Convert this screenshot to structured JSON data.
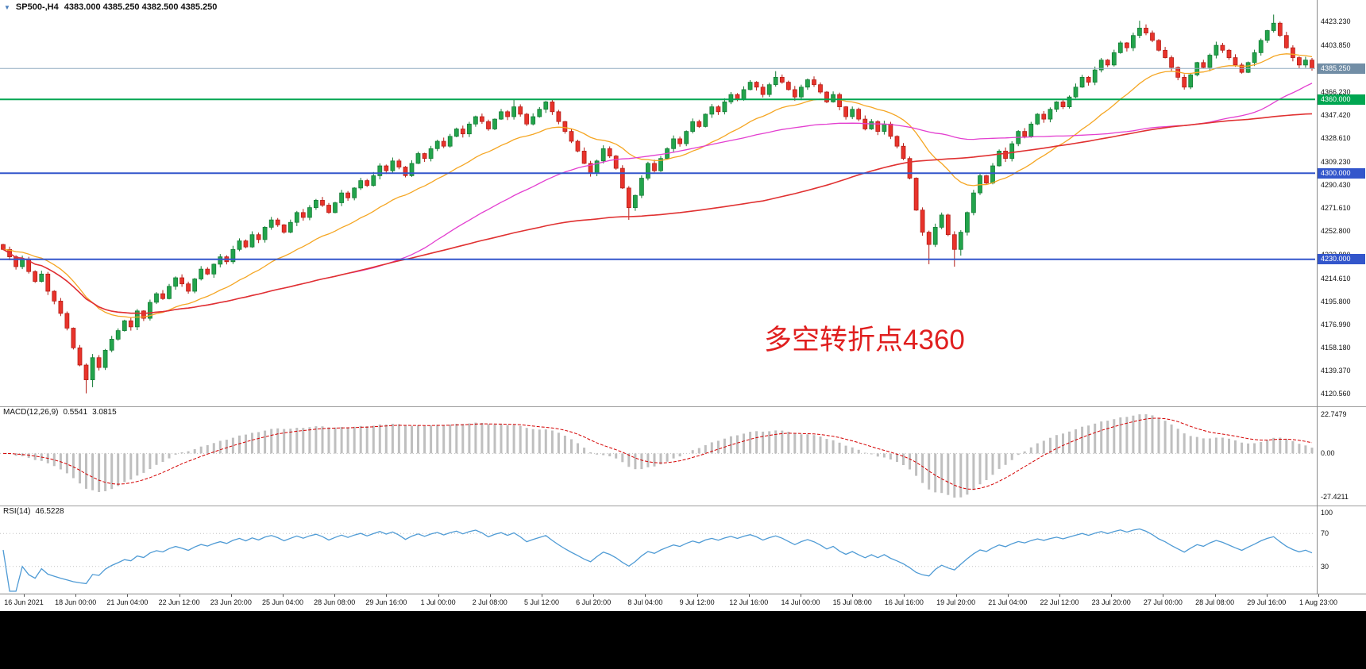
{
  "header": {
    "symbol_period": "SP500-,H4",
    "ohlc": "4383.000 4385.250 4382.500 4385.250"
  },
  "annotation": {
    "text": "多空转折点4360",
    "color": "#e01f1f"
  },
  "colors": {
    "up": "#23a44c",
    "up_border": "#137a33",
    "down": "#e8332b",
    "down_border": "#b31c15",
    "ma_fast": "#f5a623",
    "ma_mid": "#e33fd0",
    "ma_slow": "#e03131",
    "axis_text": "#111111"
  },
  "chart_data": {
    "type": "candlestick",
    "symbol": "SP500-",
    "timeframe": "H4",
    "ohlc_display": {
      "open": "4383.000",
      "high": "4385.250",
      "low": "4382.500",
      "close": "4385.250"
    },
    "price_axis": {
      "min": 4113,
      "max": 4437,
      "scale_labels": [
        "4423.230",
        "4403.850",
        "4366.230",
        "4347.420",
        "4328.610",
        "4309.230",
        "4290.430",
        "4271.610",
        "4252.800",
        "4233.990",
        "4214.610",
        "4195.800",
        "4176.990",
        "4158.180",
        "4139.370",
        "4120.560"
      ]
    },
    "levels": [
      {
        "value": 4385.25,
        "label": "4385.250",
        "line_color": "#93adc2",
        "box_color": "#728ea6",
        "width": 1,
        "name": "current-price"
      },
      {
        "value": 4360,
        "label": "4360.000",
        "line_color": "#00a651",
        "box_color": "#00a651",
        "width": 2,
        "name": "level-4360"
      },
      {
        "value": 4300,
        "label": "4300.000",
        "line_color": "#3356cb",
        "box_color": "#3356cb",
        "width": 2,
        "name": "level-4300"
      },
      {
        "value": 4230,
        "label": "4230.000",
        "line_color": "#3356cb",
        "box_color": "#3356cb",
        "width": 2,
        "name": "level-4230"
      }
    ],
    "moving_averages": [
      {
        "name": "fast",
        "method": "ema",
        "period": 21,
        "color": "#f5a623",
        "width": 1.3
      },
      {
        "name": "medium",
        "method": "sma",
        "period": 55,
        "color": "#e33fd0",
        "width": 1.3
      },
      {
        "name": "slow",
        "method": "sma",
        "period": 120,
        "color": "#e03131",
        "width": 1.6
      }
    ],
    "candles": {
      "first_open": 4242,
      "closes": [
        4238,
        4232,
        4224,
        4230,
        4220,
        4212,
        4218,
        4204,
        4196,
        4186,
        4174,
        4158,
        4144,
        4132,
        4150,
        4142,
        4156,
        4165,
        4172,
        4180,
        4175,
        4188,
        4182,
        4195,
        4202,
        4198,
        4208,
        4215,
        4210,
        4204,
        4214,
        4222,
        4218,
        4226,
        4232,
        4228,
        4238,
        4245,
        4240,
        4250,
        4246,
        4256,
        4262,
        4258,
        4252,
        4260,
        4268,
        4264,
        4272,
        4278,
        4274,
        4268,
        4276,
        4284,
        4280,
        4288,
        4294,
        4290,
        4298,
        4306,
        4302,
        4310,
        4305,
        4298,
        4308,
        4316,
        4312,
        4320,
        4326,
        4322,
        4330,
        4336,
        4332,
        4340,
        4346,
        4342,
        4336,
        4344,
        4350,
        4346,
        4354,
        4348,
        4340,
        4346,
        4352,
        4358,
        4350,
        4342,
        4334,
        4326,
        4318,
        4308,
        4300,
        4310,
        4320,
        4314,
        4304,
        4288,
        4272,
        4282,
        4296,
        4308,
        4302,
        4312,
        4320,
        4328,
        4324,
        4334,
        4342,
        4338,
        4348,
        4354,
        4350,
        4358,
        4364,
        4360,
        4368,
        4374,
        4370,
        4364,
        4372,
        4378,
        4374,
        4368,
        4362,
        4370,
        4376,
        4372,
        4366,
        4358,
        4364,
        4354,
        4346,
        4352,
        4344,
        4336,
        4342,
        4334,
        4340,
        4330,
        4322,
        4312,
        4296,
        4270,
        4252,
        4242,
        4256,
        4266,
        4250,
        4238,
        4252,
        4268,
        4284,
        4298,
        4292,
        4306,
        4318,
        4312,
        4324,
        4334,
        4330,
        4340,
        4348,
        4344,
        4352,
        4358,
        4354,
        4362,
        4370,
        4378,
        4374,
        4384,
        4392,
        4388,
        4398,
        4406,
        4402,
        4412,
        4418,
        4414,
        4408,
        4400,
        4394,
        4386,
        4378,
        4370,
        4380,
        4390,
        4386,
        4396,
        4404,
        4400,
        4394,
        4388,
        4382,
        4390,
        4398,
        4408,
        4416,
        4422,
        4412,
        4402,
        4394,
        4388,
        4392,
        4385.25
      ],
      "spike_lows": {
        "13": 4121,
        "14": 4126,
        "98": 4262,
        "145": 4226,
        "149": 4224,
        "150": 4233
      },
      "spike_highs": {
        "80": 4360,
        "121": 4383,
        "178": 4424,
        "199": 4429
      }
    },
    "indicators": {
      "macd": {
        "label": "MACD(12,26,9)",
        "value_main": "0.5541",
        "value_signal": "3.0815",
        "fast": 12,
        "slow": 26,
        "signal": 9,
        "axis_labels": [
          "22.7479",
          "0.00",
          "-27.4211"
        ],
        "hist_color": "#bfbfbf",
        "signal_color": "#d40000"
      },
      "rsi": {
        "label": "RSI(14)",
        "value": "46.5228",
        "period": 14,
        "axis_labels": [
          "100",
          "70",
          "30"
        ],
        "level_lines": [
          70,
          30
        ],
        "color": "#4f9bd5"
      }
    },
    "time_axis": {
      "labels": [
        "16 Jun 2021",
        "18 Jun 00:00",
        "21 Jun 04:00",
        "22 Jun 12:00",
        "23 Jun 20:00",
        "25 Jun 04:00",
        "28 Jun 08:00",
        "29 Jun 16:00",
        "1 Jul 00:00",
        "2 Jul 08:00",
        "5 Jul 12:00",
        "6 Jul 20:00",
        "8 Jul 04:00",
        "9 Jul 12:00",
        "12 Jul 16:00",
        "14 Jul 00:00",
        "15 Jul 08:00",
        "16 Jul 16:00",
        "19 Jul 20:00",
        "21 Jul 04:00",
        "22 Jul 12:00",
        "23 Jul 20:00",
        "27 Jul 00:00",
        "28 Jul 08:00",
        "29 Jul 16:00",
        "1 Aug 23:00"
      ]
    }
  }
}
